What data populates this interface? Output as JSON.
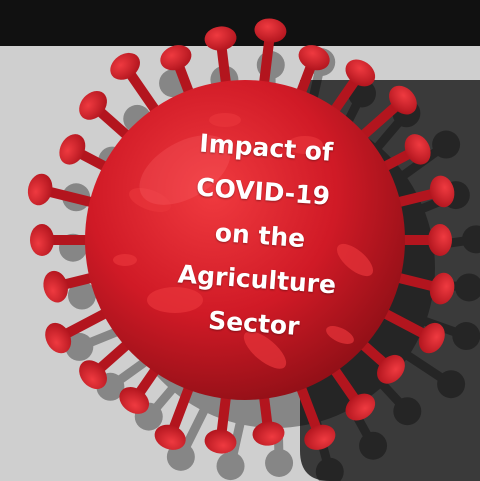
{
  "title": {
    "lines": [
      "Impact of",
      "COVID-19",
      "on the",
      "Agriculture",
      "Sector"
    ]
  },
  "colors": {
    "top-bar": "#111111",
    "light-panel": "#cfcfcf",
    "dark-panel": "#3a3a3a",
    "virus-red": "#d01a26",
    "virus-dark": "#7a0c12",
    "text": "#ffffff"
  },
  "icons": {
    "illustration": "coronavirus-icon"
  }
}
